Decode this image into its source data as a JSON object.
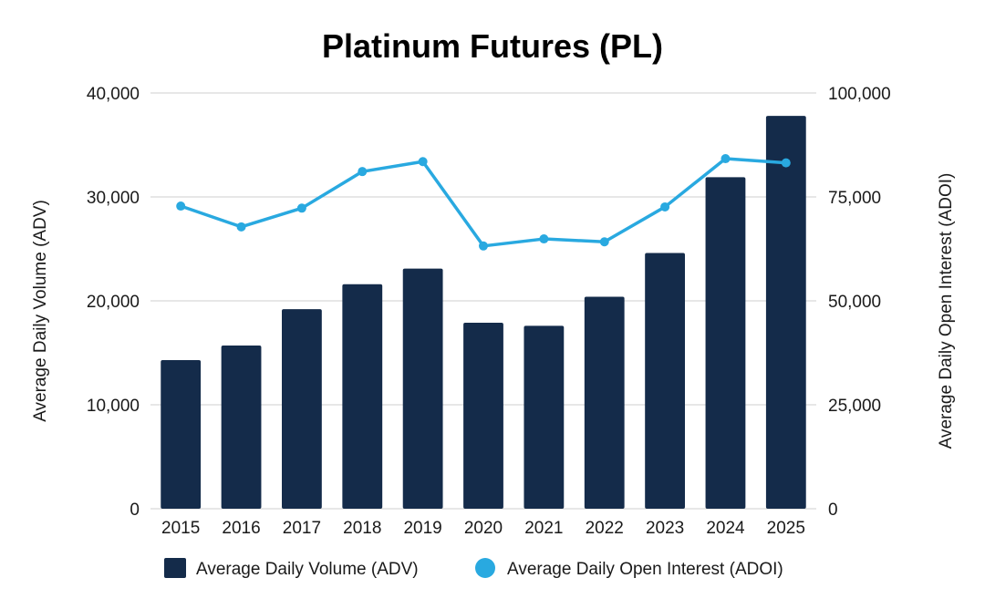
{
  "chart_data": {
    "type": "bar",
    "title": "Platinum Futures (PL)",
    "categories": [
      "2015",
      "2016",
      "2017",
      "2018",
      "2019",
      "2020",
      "2021",
      "2022",
      "2023",
      "2024",
      "2025"
    ],
    "series": [
      {
        "name": "Average Daily Volume (ADV)",
        "type": "bar",
        "axis": "left",
        "color": "#142b4a",
        "values": [
          14300,
          15700,
          19200,
          21600,
          23100,
          17900,
          17600,
          20400,
          24600,
          31900,
          37800
        ]
      },
      {
        "name": "Average Daily Open Interest (ADOI)",
        "type": "line",
        "axis": "right",
        "color": "#29a9e0",
        "values": [
          72800,
          67800,
          72300,
          81100,
          83500,
          63200,
          64900,
          64200,
          72600,
          84200,
          83200
        ]
      }
    ],
    "ylabel": "Average Daily Volume (ADV)",
    "y2label": "Average Daily Open Interest (ADOI)",
    "ylim": [
      0,
      40000
    ],
    "y2lim": [
      0,
      100000
    ],
    "yticks": [
      "0",
      "10,000",
      "20,000",
      "30,000",
      "40,000"
    ],
    "y2ticks": [
      "0",
      "25,000",
      "50,000",
      "75,000",
      "100,000"
    ],
    "yticks_values": [
      0,
      10000,
      20000,
      30000,
      40000
    ],
    "y2ticks_values": [
      0,
      25000,
      50000,
      75000,
      100000
    ],
    "grid": true,
    "legend_position": "bottom"
  }
}
